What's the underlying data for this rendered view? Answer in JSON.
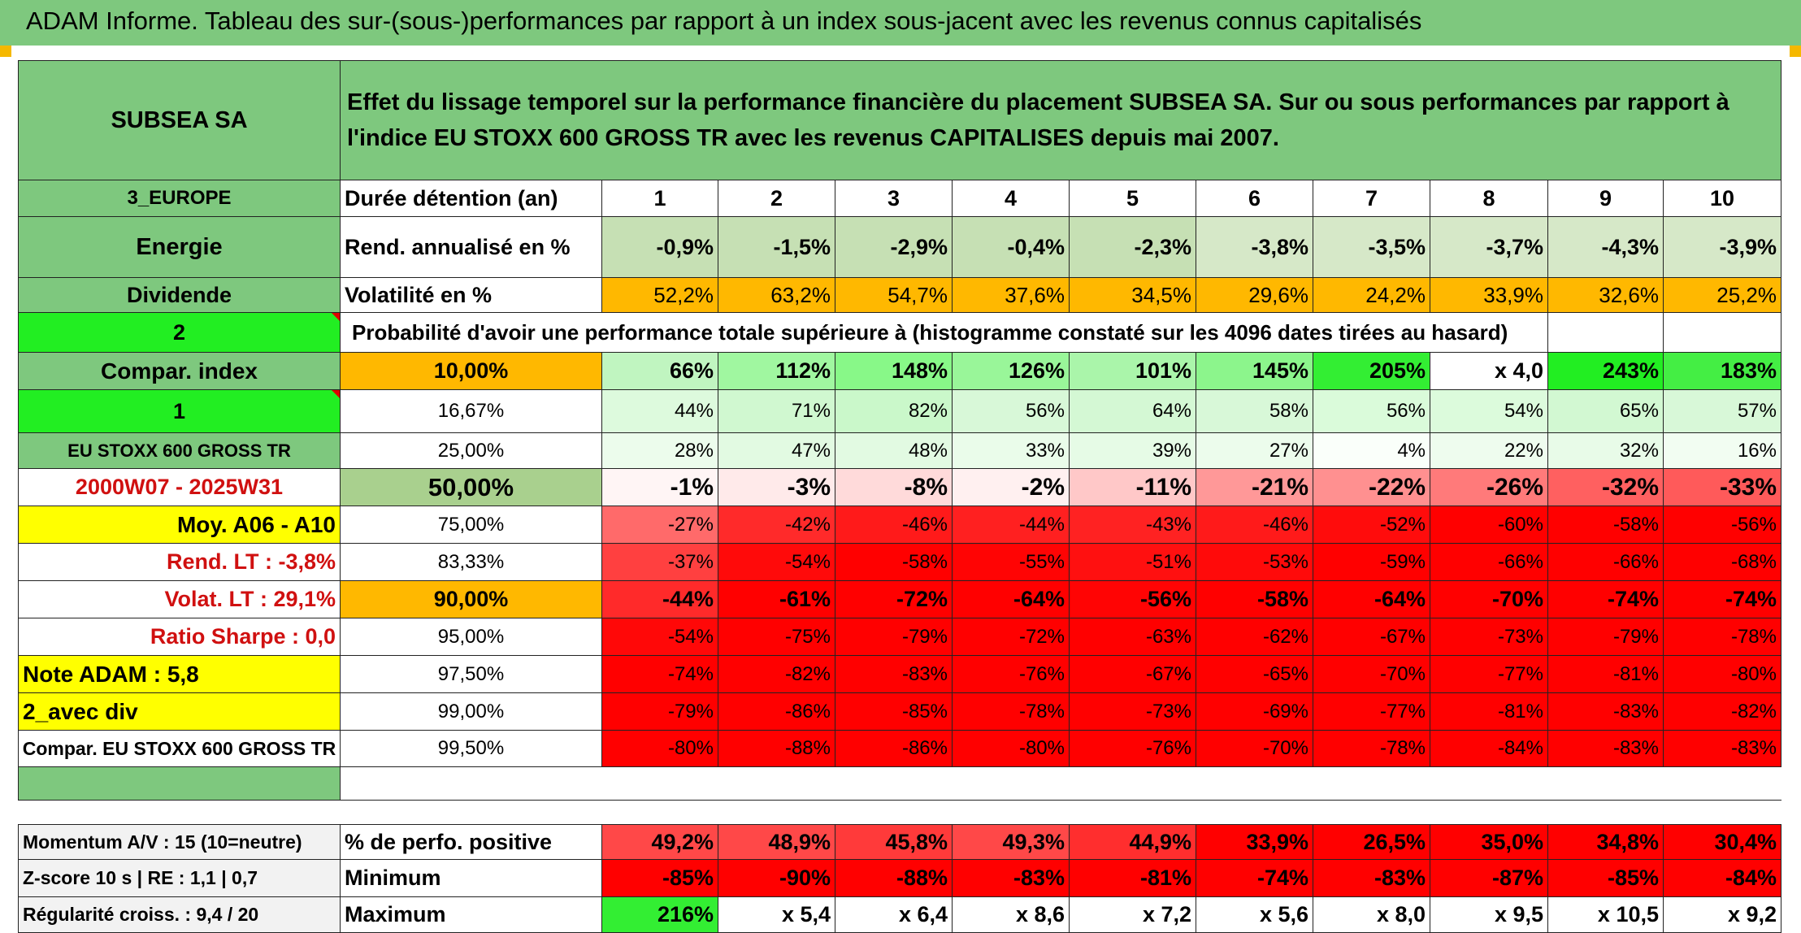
{
  "header": {
    "title": "ADAM Informe. Tableau des sur-(sous-)performances par rapport à un index sous-jacent avec les revenus connus capitalisés"
  },
  "left": {
    "name": "SUBSEA SA",
    "region": "3_EUROPE",
    "sector": "Energie",
    "dividend": "Dividende",
    "index_toggle": "2",
    "compar_index": "Compar. index",
    "index_num": "1",
    "index_name": "EU STOXX 600 GROSS TR",
    "period": "2000W07 - 2025W31",
    "moy": "Moy. A06 - A10",
    "rend_lt": "Rend. LT :    -3,8%",
    "volat_lt": "Volat. LT :    29,1%",
    "sharpe": "Ratio Sharpe :    0,0",
    "note": "Note ADAM : 5,8",
    "avec_div": "2_avec div",
    "compar_full": "Compar. EU STOXX 600 GROSS TR"
  },
  "description": "Effet du lissage temporel sur la performance financière du placement SUBSEA SA. Sur ou sous performances par rapport à l'indice EU STOXX 600 GROSS TR avec les revenus CAPITALISES depuis mai 2007.",
  "row_labels": {
    "duration": "Durée détention (an)",
    "annual_return": "Rend. annualisé en %",
    "volatility": "Volatilité en %",
    "probability": "Probabilité d'avoir une performance totale supérieure à (histogramme constaté sur les 4096 dates tirées au hasard)"
  },
  "years": [
    "1",
    "2",
    "3",
    "4",
    "5",
    "6",
    "7",
    "8",
    "9",
    "10"
  ],
  "annual_returns": [
    "-0,9%",
    "-1,5%",
    "-2,9%",
    "-0,4%",
    "-2,3%",
    "-3,8%",
    "-3,5%",
    "-3,7%",
    "-4,3%",
    "-3,9%"
  ],
  "volatilities": [
    "52,2%",
    "63,2%",
    "54,7%",
    "37,6%",
    "34,5%",
    "29,6%",
    "24,2%",
    "33,9%",
    "32,6%",
    "25,2%"
  ],
  "percentiles": [
    {
      "label": "10,00%",
      "values": [
        "66%",
        "112%",
        "148%",
        "126%",
        "101%",
        "145%",
        "205%",
        "x 4,0",
        "243%",
        "183%"
      ]
    },
    {
      "label": "16,67%",
      "values": [
        "44%",
        "71%",
        "82%",
        "56%",
        "64%",
        "58%",
        "56%",
        "54%",
        "65%",
        "57%"
      ]
    },
    {
      "label": "25,00%",
      "values": [
        "28%",
        "47%",
        "48%",
        "33%",
        "39%",
        "27%",
        "4%",
        "22%",
        "32%",
        "16%"
      ]
    },
    {
      "label": "50,00%",
      "values": [
        "-1%",
        "-3%",
        "-8%",
        "-2%",
        "-11%",
        "-21%",
        "-22%",
        "-26%",
        "-32%",
        "-33%"
      ]
    },
    {
      "label": "75,00%",
      "values": [
        "-27%",
        "-42%",
        "-46%",
        "-44%",
        "-43%",
        "-46%",
        "-52%",
        "-60%",
        "-58%",
        "-56%"
      ]
    },
    {
      "label": "83,33%",
      "values": [
        "-37%",
        "-54%",
        "-58%",
        "-55%",
        "-51%",
        "-53%",
        "-59%",
        "-66%",
        "-66%",
        "-68%"
      ]
    },
    {
      "label": "90,00%",
      "values": [
        "-44%",
        "-61%",
        "-72%",
        "-64%",
        "-56%",
        "-58%",
        "-64%",
        "-70%",
        "-74%",
        "-74%"
      ]
    },
    {
      "label": "95,00%",
      "values": [
        "-54%",
        "-75%",
        "-79%",
        "-72%",
        "-63%",
        "-62%",
        "-67%",
        "-73%",
        "-79%",
        "-78%"
      ]
    },
    {
      "label": "97,50%",
      "values": [
        "-74%",
        "-82%",
        "-83%",
        "-76%",
        "-67%",
        "-65%",
        "-70%",
        "-77%",
        "-81%",
        "-80%"
      ]
    },
    {
      "label": "99,00%",
      "values": [
        "-79%",
        "-86%",
        "-85%",
        "-78%",
        "-73%",
        "-69%",
        "-77%",
        "-81%",
        "-83%",
        "-82%"
      ]
    },
    {
      "label": "99,50%",
      "values": [
        "-80%",
        "-88%",
        "-86%",
        "-80%",
        "-76%",
        "-70%",
        "-78%",
        "-84%",
        "-83%",
        "-83%"
      ]
    }
  ],
  "stats": {
    "momentum": "Momentum A/V : 15 (10=neutre)",
    "zscore": "Z-score 10 s | RE : 1,1 | 0,7",
    "regularite": "Régularité croiss. : 9,4 / 20",
    "positive_label": "% de perfo. positive",
    "minimum_label": "Minimum",
    "maximum_label": "Maximum",
    "positive": [
      "49,2%",
      "48,9%",
      "45,8%",
      "49,3%",
      "44,9%",
      "33,9%",
      "26,5%",
      "35,0%",
      "34,8%",
      "30,4%"
    ],
    "minimum": [
      "-85%",
      "-90%",
      "-88%",
      "-83%",
      "-81%",
      "-74%",
      "-83%",
      "-87%",
      "-85%",
      "-84%"
    ],
    "maximum": [
      "216%",
      "x 5,4",
      "x 6,4",
      "x 8,6",
      "x 7,2",
      "x 5,6",
      "x 8,0",
      "x 9,5",
      "x 10,5",
      "x 9,2"
    ]
  },
  "colors": {
    "header_green": "#7ec87e",
    "bright_green": "#22ee22",
    "orange": "#ffb800",
    "yellow": "#ffff00",
    "red": "#ff0000",
    "period_red": "#d01010"
  }
}
